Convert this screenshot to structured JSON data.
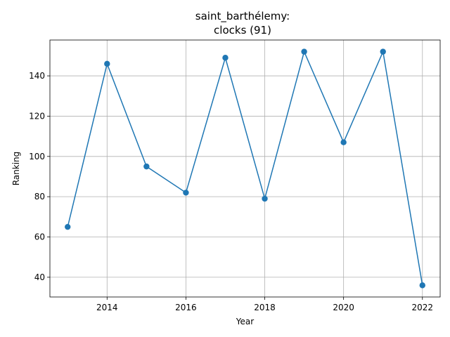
{
  "chart_data": {
    "type": "line",
    "title_line1": "saint_barthélemy:",
    "title_line2": "clocks (91)",
    "xlabel": "Year",
    "ylabel": "Ranking",
    "xlim": [
      2012.55,
      2022.45
    ],
    "ylim": [
      30.2,
      157.8
    ],
    "xticks": [
      2014,
      2016,
      2018,
      2020,
      2022
    ],
    "yticks": [
      40,
      60,
      80,
      100,
      120,
      140
    ],
    "grid": true,
    "color": "#1f77b4",
    "series": [
      {
        "x": [
          2013,
          2014,
          2015,
          2016,
          2017,
          2018,
          2019,
          2020,
          2021,
          2022
        ],
        "y": [
          65,
          146,
          95,
          82,
          149,
          79,
          152,
          107,
          152,
          36
        ]
      }
    ]
  }
}
